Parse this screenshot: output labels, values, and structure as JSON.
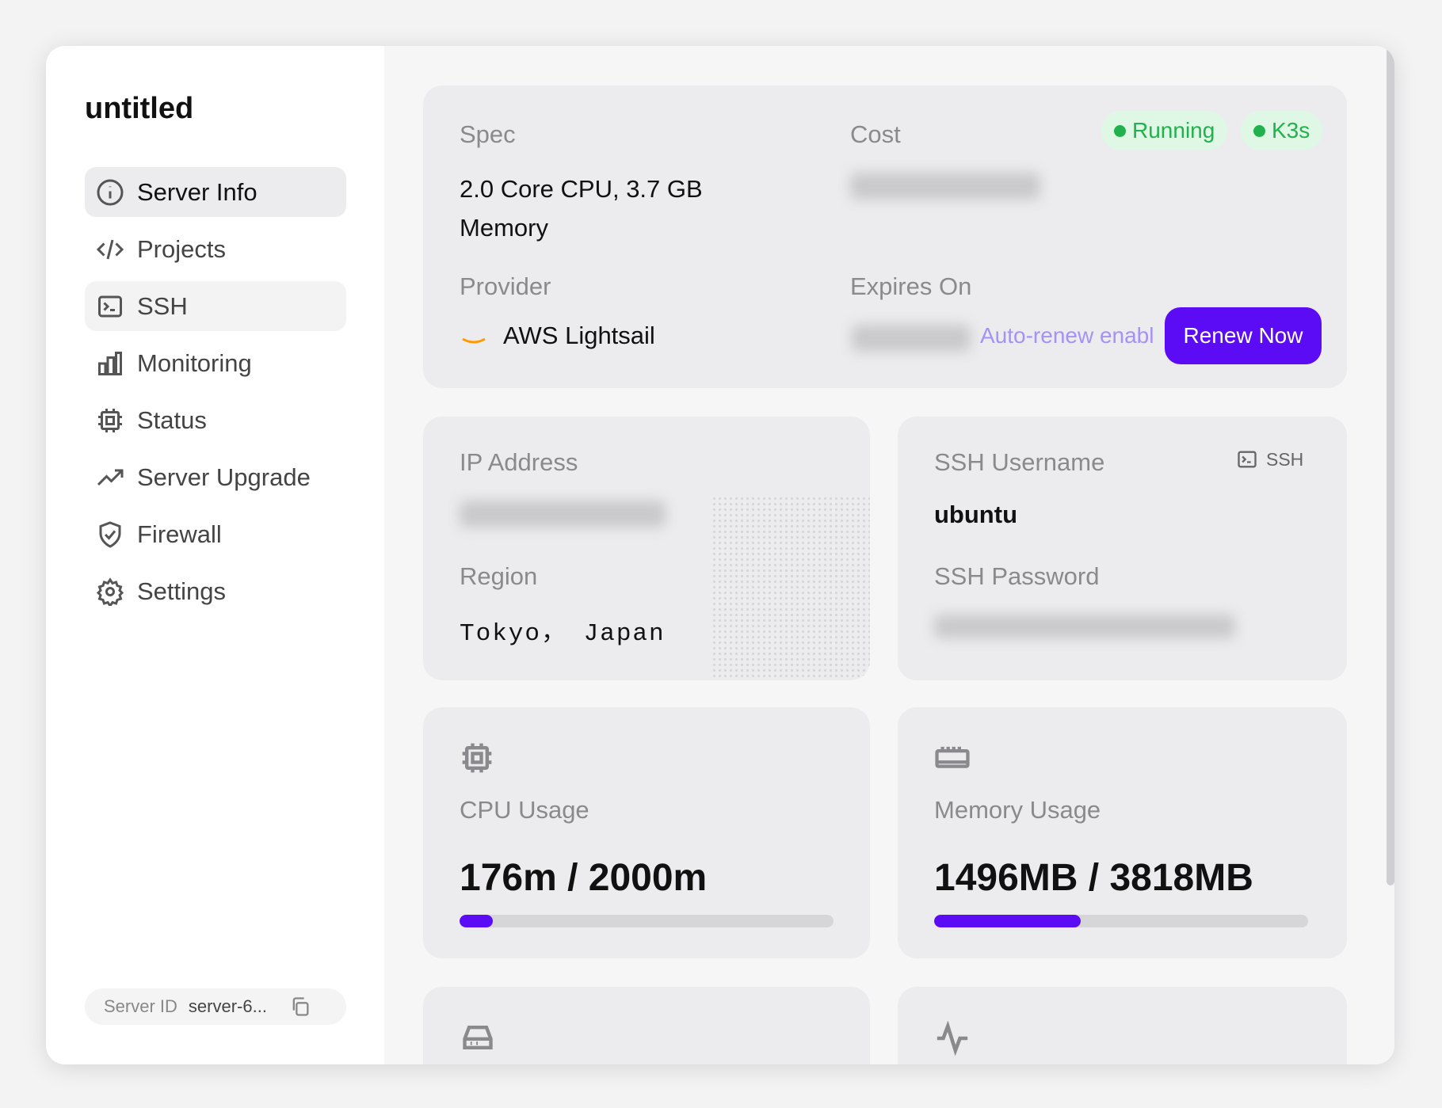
{
  "app": {
    "title": "untitled"
  },
  "sidebar": {
    "items": [
      {
        "label": "Server Info",
        "icon": "info-icon",
        "active": true
      },
      {
        "label": "Projects",
        "icon": "code-icon"
      },
      {
        "label": "SSH",
        "icon": "terminal-icon"
      },
      {
        "label": "Monitoring",
        "icon": "bar-chart-icon"
      },
      {
        "label": "Status",
        "icon": "chip-icon"
      },
      {
        "label": "Server Upgrade",
        "icon": "trending-up-icon"
      },
      {
        "label": "Firewall",
        "icon": "shield-icon"
      },
      {
        "label": "Settings",
        "icon": "gear-icon"
      }
    ],
    "server_id_label": "Server ID",
    "server_id_value": "server-6..."
  },
  "summary": {
    "spec_label": "Spec",
    "spec_value": "2.0 Core CPU, 3.7 GB Memory",
    "cost_label": "Cost",
    "provider_label": "Provider",
    "provider_value": "AWS Lightsail",
    "expires_label": "Expires On",
    "auto_renew": "Auto-renew enabl",
    "renew_button": "Renew Now",
    "badges": [
      "Running",
      "K3s"
    ],
    "badge_color": "#22b14c",
    "accent": "#5b0cf5"
  },
  "network": {
    "ip_label": "IP Address",
    "region_label": "Region",
    "region_value": "Tokyo， Japan"
  },
  "ssh": {
    "username_label": "SSH Username",
    "username_value": "ubuntu",
    "password_label": "SSH Password",
    "ssh_button": "SSH"
  },
  "cpu": {
    "label": "CPU Usage",
    "value": "176m / 2000m",
    "percent": 8.8
  },
  "memory": {
    "label": "Memory Usage",
    "value": "1496MB / 3818MB",
    "percent": 39.2
  }
}
